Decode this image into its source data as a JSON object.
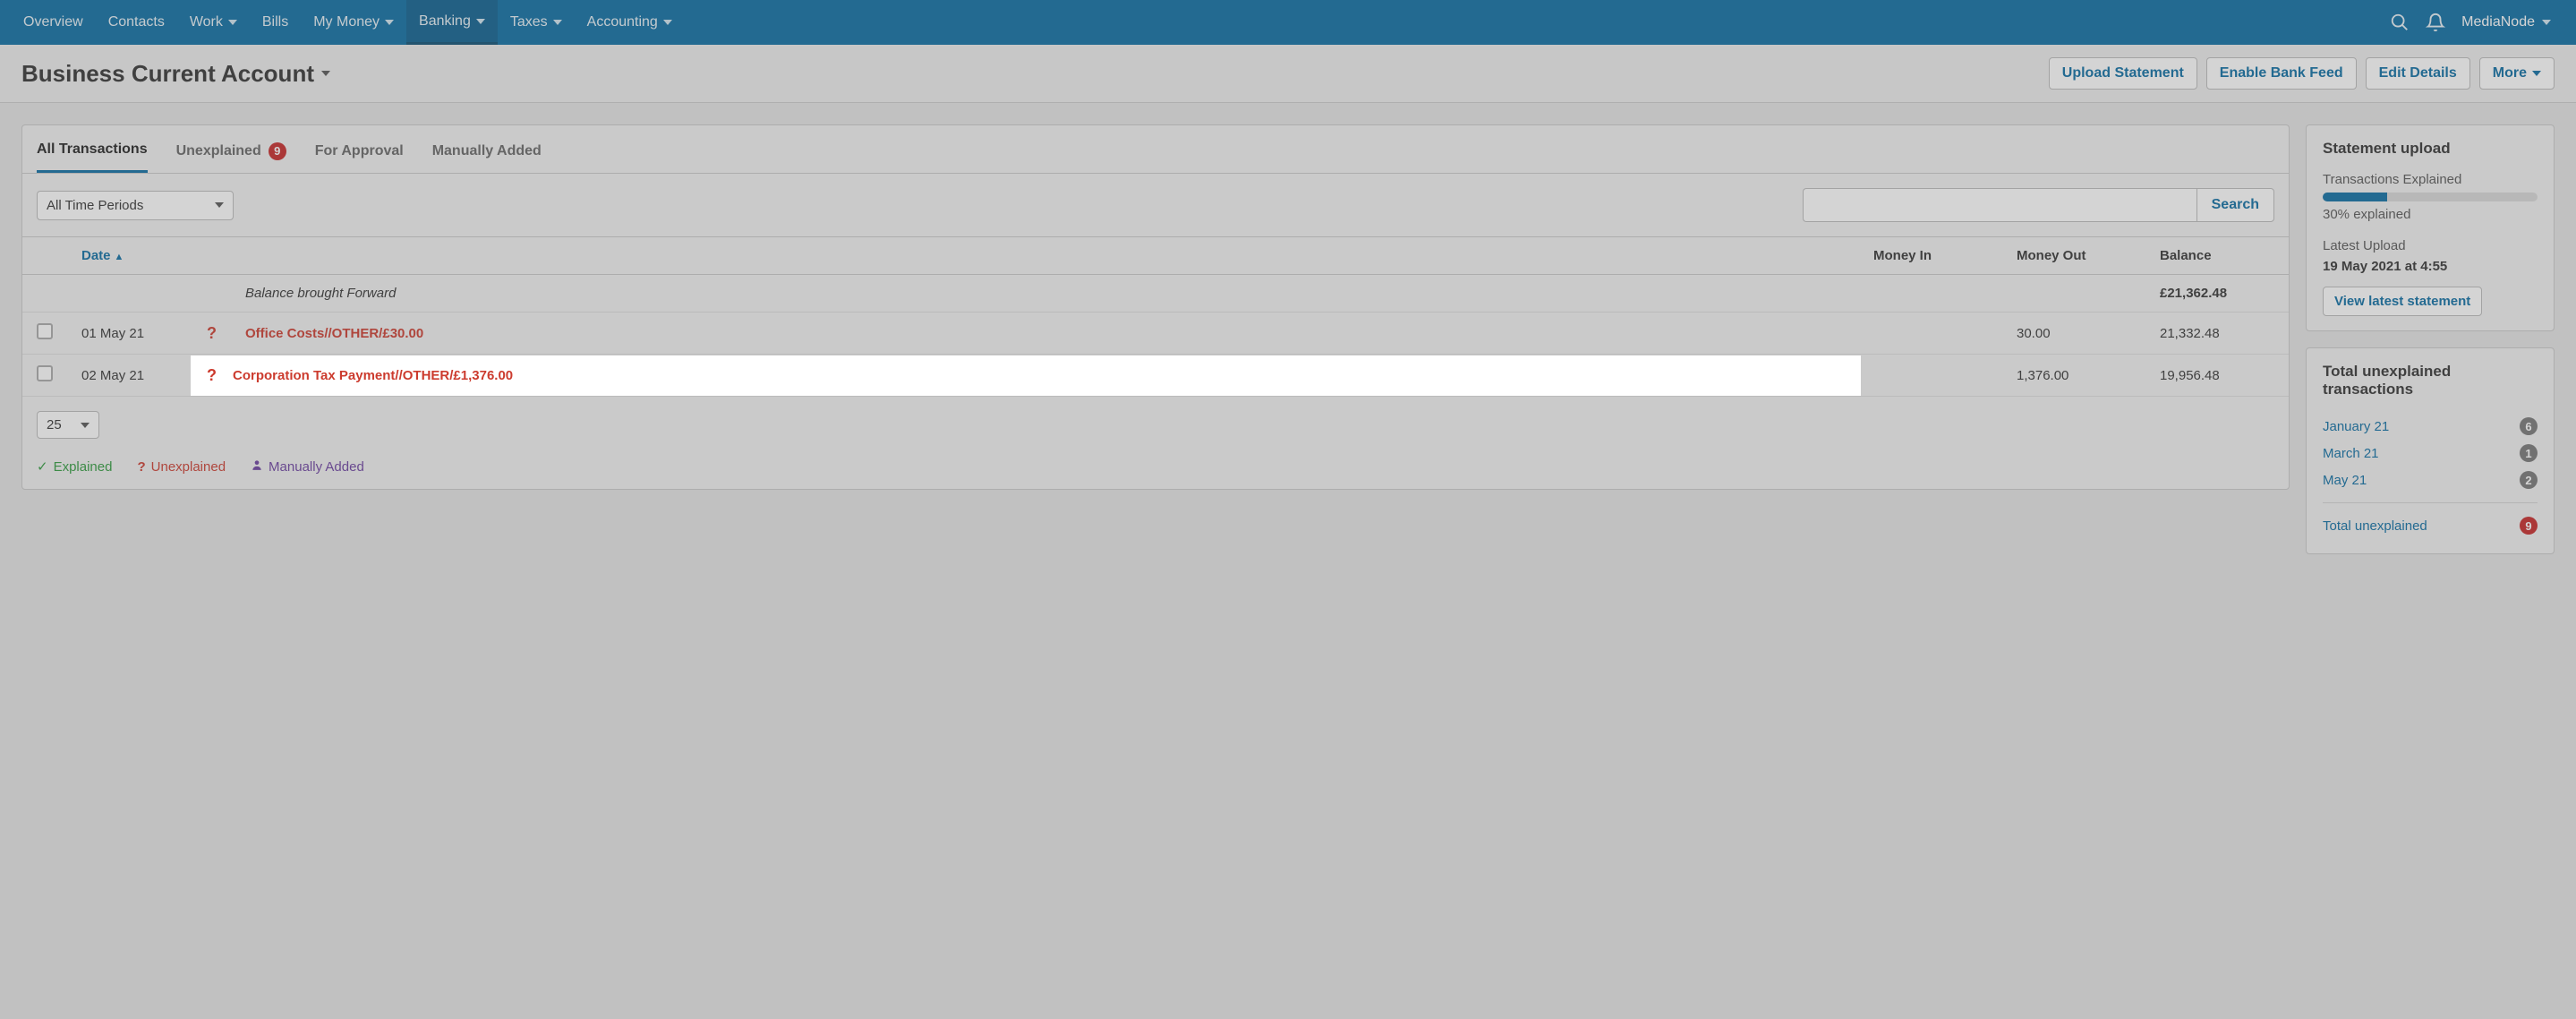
{
  "nav": {
    "items": [
      {
        "label": "Overview",
        "dropdown": false,
        "active": false
      },
      {
        "label": "Contacts",
        "dropdown": false,
        "active": false
      },
      {
        "label": "Work",
        "dropdown": true,
        "active": false
      },
      {
        "label": "Bills",
        "dropdown": false,
        "active": false
      },
      {
        "label": "My Money",
        "dropdown": true,
        "active": false
      },
      {
        "label": "Banking",
        "dropdown": true,
        "active": true
      },
      {
        "label": "Taxes",
        "dropdown": true,
        "active": false
      },
      {
        "label": "Accounting",
        "dropdown": true,
        "active": false
      }
    ],
    "account_label": "MediaNode"
  },
  "header": {
    "title": "Business Current Account",
    "actions": {
      "upload": "Upload Statement",
      "enable_feed": "Enable Bank Feed",
      "edit": "Edit Details",
      "more": "More"
    }
  },
  "tabs": {
    "all": "All Transactions",
    "unexplained": "Unexplained",
    "unexplained_count": "9",
    "approval": "For Approval",
    "manual": "Manually Added"
  },
  "filters": {
    "period": "All Time Periods",
    "search_btn": "Search"
  },
  "table": {
    "columns": {
      "date": "Date",
      "money_in": "Money In",
      "money_out": "Money Out",
      "balance": "Balance"
    },
    "balance_forward": {
      "label": "Balance brought Forward",
      "amount": "£21,362.48"
    },
    "rows": [
      {
        "date": "01 May 21",
        "desc": "Office Costs//OTHER/£30.00",
        "money_in": "",
        "money_out": "30.00",
        "balance": "21,332.48",
        "highlight": false
      },
      {
        "date": "02 May 21",
        "desc": "Corporation Tax Payment//OTHER/£1,376.00",
        "money_in": "",
        "money_out": "1,376.00",
        "balance": "19,956.48",
        "highlight": true
      }
    ],
    "page_size": "25"
  },
  "legend": {
    "explained": "Explained",
    "unexplained": "Unexplained",
    "manual": "Manually Added"
  },
  "side": {
    "upload": {
      "title": "Statement upload",
      "progress_label": "Transactions Explained",
      "progress_pct": 30,
      "progress_text": "30% explained",
      "latest_label": "Latest Upload",
      "latest_value": "19 May 2021 at 4:55",
      "view_btn": "View latest statement"
    },
    "unexplained": {
      "title": "Total unexplained transactions",
      "months": [
        {
          "label": "January 21",
          "count": "6"
        },
        {
          "label": "March 21",
          "count": "1"
        },
        {
          "label": "May 21",
          "count": "2"
        }
      ],
      "total_label": "Total unexplained",
      "total_count": "9"
    }
  },
  "colors": {
    "nav_bg": "#0b6ca3",
    "link": "#0b6ca3",
    "danger": "#cc3b2e",
    "success": "#2e9a3c",
    "purple": "#6b3fa0",
    "badge_red": "#c62828",
    "badge_grey": "#777777"
  }
}
